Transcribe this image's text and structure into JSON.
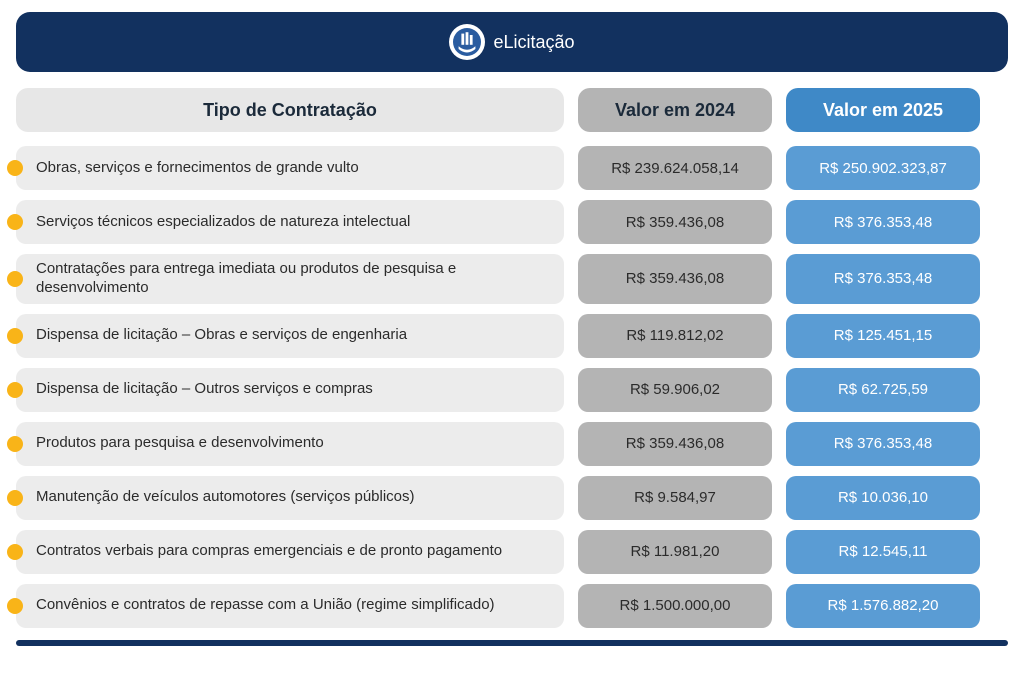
{
  "brand": "eLicitação",
  "headers": {
    "left": "Tipo de Contratação",
    "mid": "Valor em 2024",
    "right": "Valor em 2025"
  },
  "colors": {
    "header_bar": "#12315f",
    "hdr_left_bg": "#e7e7e7",
    "hdr_mid_bg": "#b4b4b4",
    "hdr_right_bg": "#3f89c7",
    "cell_left_bg": "#ececec",
    "cell_mid_bg": "#b4b4b4",
    "cell_right_bg": "#5a9cd4",
    "bullet": "#f9b418",
    "text_dark": "#2b2b2b",
    "text_white": "#ffffff"
  },
  "rows": [
    {
      "label": "Obras, serviços e fornecimentos de grande vulto",
      "v2024": "R$ 239.624.058,14",
      "v2025": "R$ 250.902.323,87"
    },
    {
      "label": "Serviços técnicos especializados de natureza intelectual",
      "v2024": "R$ 359.436,08",
      "v2025": "R$ 376.353,48"
    },
    {
      "label": "Contratações para entrega imediata ou produtos de pesquisa e desenvolvimento",
      "v2024": "R$ 359.436,08",
      "v2025": "R$ 376.353,48"
    },
    {
      "label": "Dispensa de licitação – Obras e serviços de engenharia",
      "v2024": "R$ 119.812,02",
      "v2025": "R$ 125.451,15"
    },
    {
      "label": "Dispensa de licitação – Outros serviços e compras",
      "v2024": "R$ 59.906,02",
      "v2025": "R$ 62.725,59"
    },
    {
      "label": "Produtos para pesquisa e desenvolvimento",
      "v2024": "R$ 359.436,08",
      "v2025": "R$ 376.353,48"
    },
    {
      "label": "Manutenção de veículos automotores (serviços públicos)",
      "v2024": "R$ 9.584,97",
      "v2025": "R$ 10.036,10"
    },
    {
      "label": "Contratos verbais para compras emergenciais e de pronto pagamento",
      "v2024": "R$ 11.981,20",
      "v2025": "R$ 12.545,11"
    },
    {
      "label": "Convênios e contratos de repasse com a União (regime simplificado)",
      "v2024": "R$ 1.500.000,00",
      "v2025": "R$ 1.576.882,20"
    }
  ]
}
